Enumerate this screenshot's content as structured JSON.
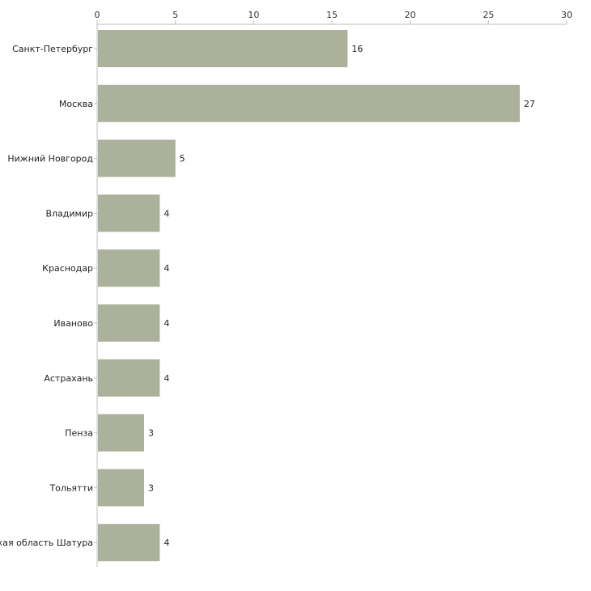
{
  "chart_data": {
    "type": "bar",
    "orientation": "horizontal",
    "categories": [
      "Санкт-Петербург",
      "Москва",
      "Нижний Новгород",
      "Владимир",
      "Краснодар",
      "Иваново",
      "Астрахань",
      "Пенза",
      "Тольятти",
      "Московская область Шатура"
    ],
    "values": [
      16,
      27,
      5,
      4,
      4,
      4,
      4,
      3,
      3,
      4
    ],
    "data_labels": [
      "16",
      "27",
      "5",
      "4",
      "4",
      "4",
      "4",
      "3",
      "3",
      "4"
    ],
    "title": "",
    "xlabel": "",
    "ylabel": "",
    "xlim": [
      0,
      30
    ],
    "x_ticks": [
      0,
      5,
      10,
      15,
      20,
      25,
      30
    ],
    "x_tick_labels": [
      "0",
      "5",
      "10",
      "15",
      "20",
      "25",
      "30"
    ],
    "x_axis_position": "top",
    "grid": false,
    "legend": "none",
    "colors": {
      "bar": "#abb19a",
      "axis": "#bdbdbd",
      "text": "#222222"
    }
  }
}
